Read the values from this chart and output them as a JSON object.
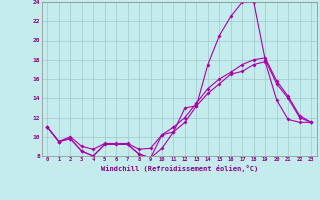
{
  "xlabel": "Windchill (Refroidissement éolien,°C)",
  "xlim": [
    -0.5,
    23.5
  ],
  "ylim": [
    8,
    24
  ],
  "yticks": [
    8,
    10,
    12,
    14,
    16,
    18,
    20,
    22,
    24
  ],
  "xticks": [
    0,
    1,
    2,
    3,
    4,
    5,
    6,
    7,
    8,
    9,
    10,
    11,
    12,
    13,
    14,
    15,
    16,
    17,
    18,
    19,
    20,
    21,
    22,
    23
  ],
  "background_color": "#c5eced",
  "grid_color": "#a0c8cc",
  "line_color": "#aa00aa",
  "curve1_x": [
    0,
    1,
    2,
    3,
    4,
    5,
    6,
    7,
    8,
    9,
    10,
    11,
    12,
    13,
    14,
    15,
    16,
    17,
    18,
    19,
    20,
    21,
    22,
    23
  ],
  "curve1_y": [
    11.0,
    9.5,
    9.8,
    8.5,
    8.0,
    9.2,
    9.2,
    9.2,
    8.2,
    7.8,
    8.8,
    10.5,
    13.0,
    13.2,
    17.5,
    20.5,
    22.5,
    24.0,
    24.0,
    18.0,
    15.5,
    14.0,
    12.0,
    11.5
  ],
  "curve2_x": [
    0,
    1,
    2,
    3,
    4,
    5,
    6,
    7,
    8,
    9,
    10,
    11,
    12,
    13,
    14,
    15,
    16,
    17,
    18,
    19,
    20,
    21,
    22,
    23
  ],
  "curve2_y": [
    11.0,
    9.5,
    10.0,
    9.0,
    8.7,
    9.3,
    9.3,
    9.3,
    8.7,
    8.8,
    10.2,
    11.0,
    12.0,
    13.5,
    15.0,
    16.0,
    16.7,
    17.5,
    18.0,
    18.2,
    15.8,
    14.2,
    12.2,
    11.5
  ],
  "curve3_x": [
    0,
    1,
    2,
    3,
    4,
    5,
    6,
    7,
    8,
    9,
    10,
    11,
    12,
    13,
    14,
    15,
    16,
    17,
    18,
    19,
    20,
    21,
    22,
    23
  ],
  "curve3_y": [
    11.0,
    9.5,
    9.8,
    8.5,
    8.0,
    9.2,
    9.2,
    9.2,
    8.2,
    7.8,
    10.2,
    10.5,
    11.5,
    13.2,
    14.5,
    15.5,
    16.5,
    16.8,
    17.5,
    17.8,
    13.8,
    11.8,
    11.5,
    11.5
  ]
}
